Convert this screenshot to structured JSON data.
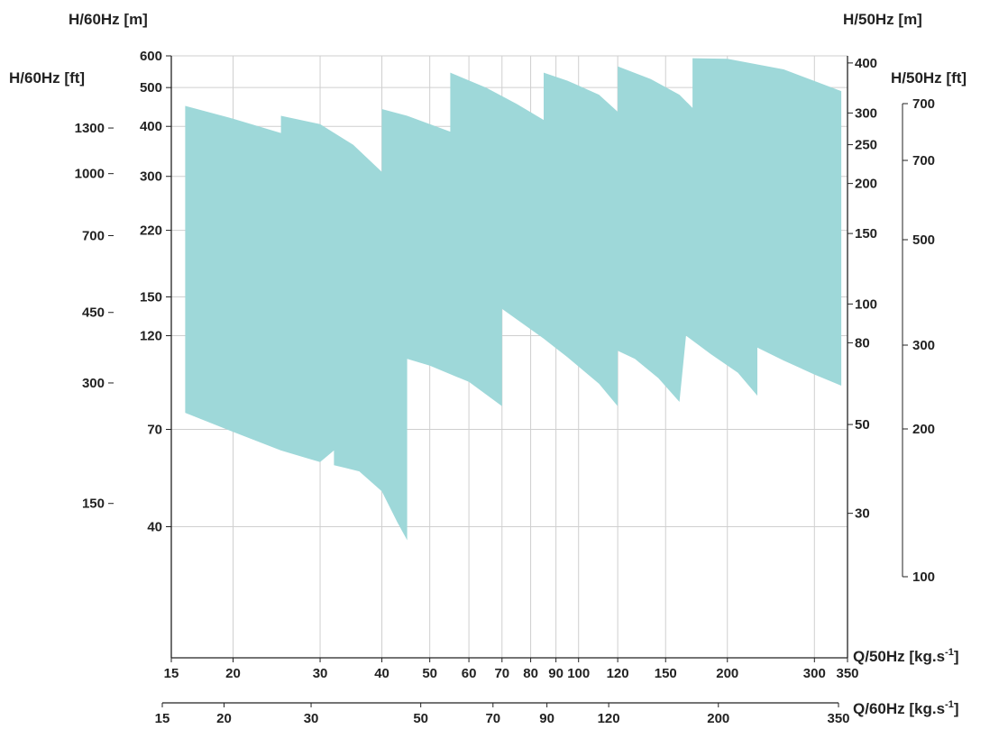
{
  "chart_data": {
    "type": "area",
    "title": "",
    "labels": {
      "y_left_m": "H/60Hz [m]",
      "y_left_ft": "H/60Hz [ft]",
      "y_right_m": "H/50Hz [m]",
      "y_right_ft": "H/50Hz [ft]",
      "x_50": "Q/50Hz [kg.s",
      "x_60": "Q/60Hz [kg.s",
      "x_unit_sup": "-1",
      "x_unit_close": "]"
    },
    "x_axis_50hz": {
      "scale": "log",
      "range": [
        15,
        350
      ],
      "ticks": [
        "15",
        "20",
        "30",
        "40",
        "50",
        "60",
        "70",
        "80",
        "90",
        "100",
        "120",
        "150",
        "200",
        "300",
        "350"
      ]
    },
    "x_axis_60hz": {
      "scale": "log",
      "ticks": [
        "15",
        "20",
        "30",
        "50",
        "70",
        "90",
        "120",
        "200",
        "350"
      ]
    },
    "y_axis_60hz_m": {
      "scale": "log",
      "range": [
        30,
        600
      ],
      "ticks": [
        "600",
        "500",
        "400",
        "300",
        "220",
        "150",
        "120",
        "70",
        "40"
      ]
    },
    "y_axis_60hz_ft": {
      "ticks": [
        "1300",
        "1000",
        "700",
        "450",
        "300",
        "150"
      ]
    },
    "y_axis_50hz_m": {
      "ticks": [
        "400",
        "300",
        "250",
        "200",
        "150",
        "100",
        "80",
        "50",
        "30"
      ]
    },
    "y_axis_50hz_ft": {
      "ticks": [
        "700",
        "700",
        "500",
        "300",
        "200",
        "100"
      ]
    },
    "grid": true,
    "fill_color": "#9ed8d9",
    "series": [
      {
        "type": "area",
        "points": [
          [
            16,
            450
          ],
          [
            20,
            418
          ],
          [
            25,
            385
          ],
          [
            25,
            425
          ],
          [
            30,
            405
          ],
          [
            35,
            360
          ],
          [
            40,
            308
          ],
          [
            40,
            442
          ],
          [
            45,
            425
          ],
          [
            50,
            405
          ],
          [
            55,
            388
          ],
          [
            55,
            545
          ],
          [
            65,
            500
          ],
          [
            75,
            455
          ],
          [
            85,
            415
          ],
          [
            85,
            545
          ],
          [
            95,
            520
          ],
          [
            110,
            480
          ],
          [
            120,
            435
          ],
          [
            120,
            565
          ],
          [
            140,
            525
          ],
          [
            160,
            480
          ],
          [
            170,
            445
          ],
          [
            170,
            592
          ],
          [
            200,
            590
          ],
          [
            260,
            555
          ],
          [
            340,
            490
          ],
          [
            340,
            90
          ],
          [
            300,
            96
          ],
          [
            260,
            104
          ],
          [
            230,
            112
          ],
          [
            230,
            85
          ],
          [
            210,
            97
          ],
          [
            185,
            108
          ],
          [
            165,
            120
          ],
          [
            160,
            82
          ],
          [
            145,
            94
          ],
          [
            130,
            105
          ],
          [
            120,
            110
          ],
          [
            120,
            80
          ],
          [
            110,
            91
          ],
          [
            95,
            106
          ],
          [
            85,
            118
          ],
          [
            70,
            140
          ],
          [
            70,
            80
          ],
          [
            60,
            92
          ],
          [
            50,
            101
          ],
          [
            45,
            105
          ],
          [
            45,
            37
          ],
          [
            43,
            41
          ],
          [
            40,
            49
          ],
          [
            36,
            55
          ],
          [
            32,
            57
          ],
          [
            32,
            62
          ],
          [
            30,
            58
          ],
          [
            25,
            62
          ],
          [
            20,
            69
          ],
          [
            16,
            77
          ]
        ]
      }
    ]
  }
}
